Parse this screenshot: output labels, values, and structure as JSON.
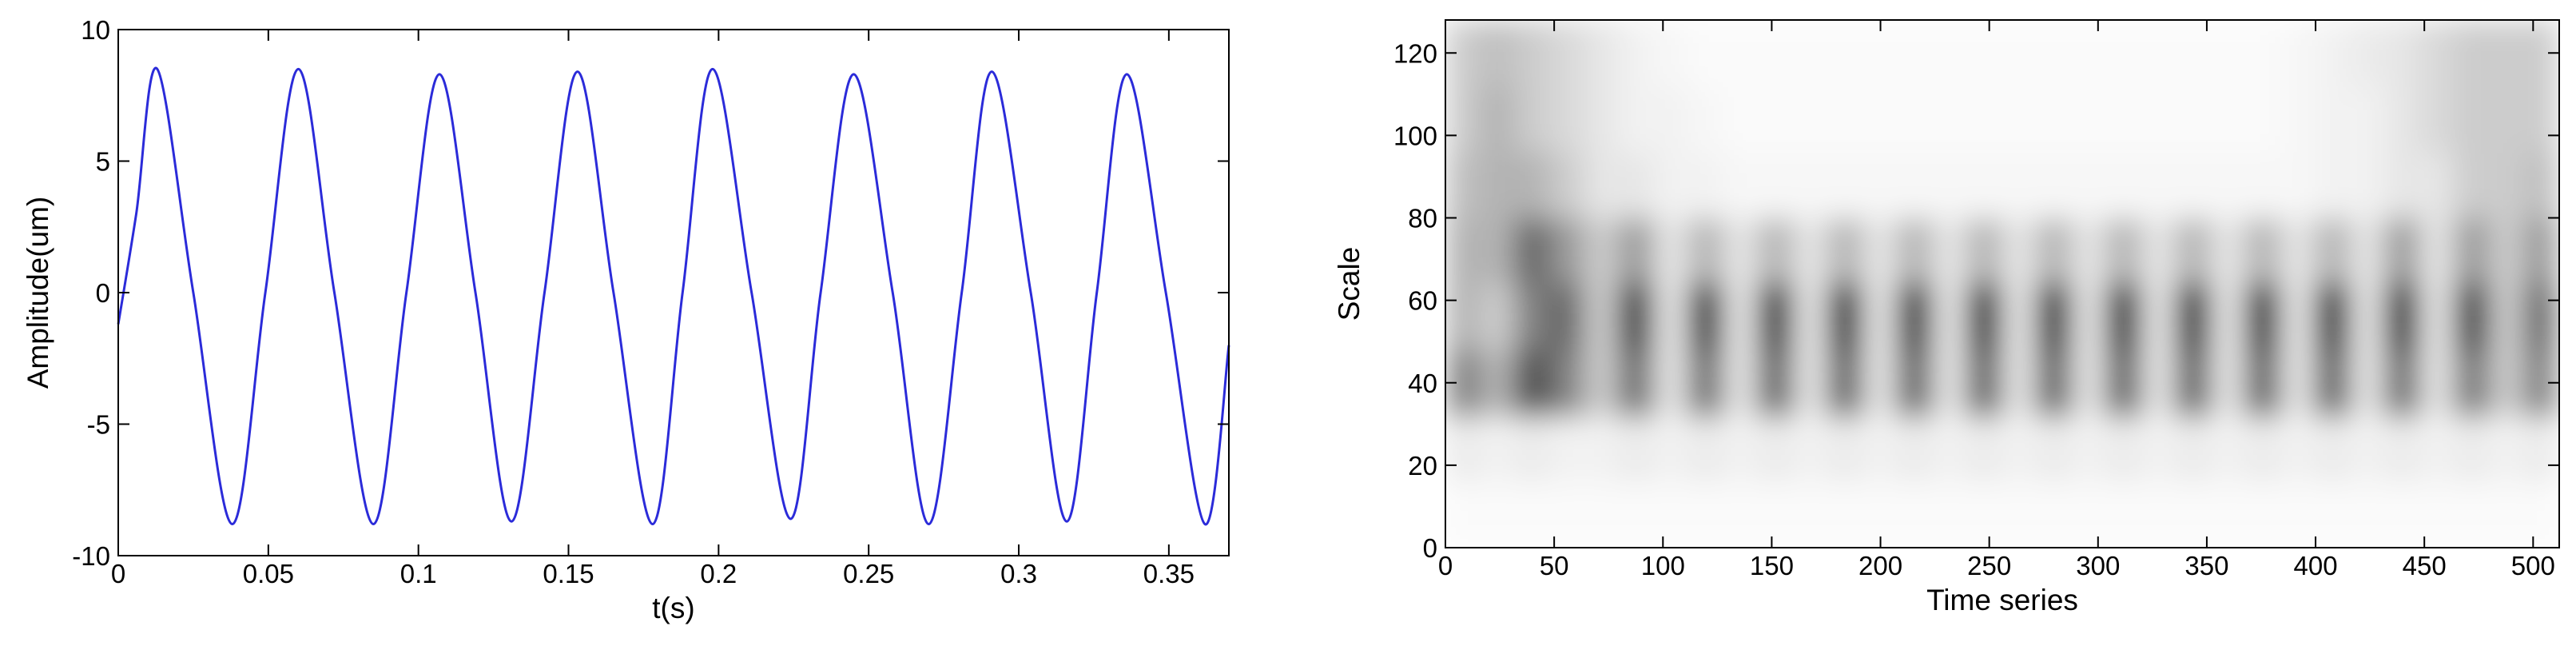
{
  "chart_data": [
    {
      "type": "line",
      "xlabel": "t(s)",
      "ylabel": "Amplitude(um)",
      "xlim": [
        0,
        0.37
      ],
      "ylim": [
        -10,
        10
      ],
      "xticks": [
        0,
        0.05,
        0.1,
        0.15,
        0.2,
        0.25,
        0.3,
        0.35
      ],
      "yticks": [
        -10,
        -5,
        0,
        5,
        10
      ],
      "series": [
        {
          "color": "#2b2bd9",
          "x": [
            0,
            0.006,
            0.013,
            0.025,
            0.038,
            0.049,
            0.06,
            0.072,
            0.085,
            0.096,
            0.107,
            0.119,
            0.131,
            0.142,
            0.153,
            0.165,
            0.178,
            0.188,
            0.198,
            0.211,
            0.224,
            0.234,
            0.245,
            0.258,
            0.27,
            0.281,
            0.291,
            0.304,
            0.316,
            0.326,
            0.336,
            0.349,
            0.362,
            0.37
          ],
          "values": [
            -1.2,
            3,
            8.5,
            0,
            -8.8,
            0,
            8.5,
            0,
            -8.8,
            0,
            8.3,
            0,
            -8.7,
            0,
            8.4,
            0,
            -8.8,
            0,
            8.5,
            0,
            -8.6,
            0,
            8.3,
            0,
            -8.8,
            0,
            8.4,
            0,
            -8.7,
            0,
            8.3,
            0,
            -8.8,
            -2
          ]
        }
      ]
    },
    {
      "type": "heatmap",
      "xlabel": "Time series",
      "ylabel": "Scale",
      "xlim": [
        0,
        512
      ],
      "ylim": [
        0,
        128
      ],
      "xticks": [
        0,
        50,
        100,
        150,
        200,
        250,
        300,
        350,
        400,
        450,
        500
      ],
      "yticks": [
        0,
        20,
        40,
        60,
        80,
        100,
        120
      ],
      "z": [
        [
          0.02,
          0.02,
          0.02,
          0.02,
          0.02,
          0.02,
          0.02,
          0.02,
          0.02,
          0.02,
          0.02,
          0.02,
          0.02,
          0.02,
          0.02,
          0.02,
          0.02,
          0.02,
          0.02,
          0.02,
          0.02,
          0.02,
          0.02,
          0.02,
          0.02,
          0.02,
          0.02,
          0.02,
          0.02,
          0.02,
          0.02,
          0.02
        ],
        [
          0.08,
          0.05,
          0.08,
          0.05,
          0.05,
          0.08,
          0.05,
          0.08,
          0.05,
          0.08,
          0.05,
          0.08,
          0.05,
          0.08,
          0.05,
          0.08,
          0.05,
          0.08,
          0.05,
          0.08,
          0.05,
          0.08,
          0.05,
          0.08,
          0.05,
          0.08,
          0.05,
          0.08,
          0.05,
          0.08,
          0.05,
          0.08
        ],
        [
          0.5,
          0.3,
          0.7,
          0.5,
          0.2,
          0.6,
          0.1,
          0.6,
          0.1,
          0.65,
          0.1,
          0.65,
          0.1,
          0.65,
          0.1,
          0.65,
          0.1,
          0.65,
          0.1,
          0.65,
          0.1,
          0.65,
          0.1,
          0.65,
          0.1,
          0.65,
          0.1,
          0.6,
          0.1,
          0.55,
          0.2,
          0.5
        ],
        [
          0.3,
          0.2,
          0.5,
          0.6,
          0.2,
          0.85,
          0.1,
          0.9,
          0.1,
          0.95,
          0.1,
          0.95,
          0.1,
          0.95,
          0.1,
          0.95,
          0.1,
          0.95,
          0.1,
          0.95,
          0.1,
          0.95,
          0.1,
          0.95,
          0.1,
          0.95,
          0.1,
          0.9,
          0.1,
          0.8,
          0.2,
          0.6
        ],
        [
          0.3,
          0.3,
          0.6,
          0.4,
          0.2,
          0.4,
          0.1,
          0.3,
          0.1,
          0.3,
          0.1,
          0.3,
          0.1,
          0.3,
          0.1,
          0.3,
          0.1,
          0.3,
          0.1,
          0.3,
          0.1,
          0.3,
          0.1,
          0.3,
          0.1,
          0.3,
          0.1,
          0.4,
          0.1,
          0.4,
          0.2,
          0.4
        ],
        [
          0.25,
          0.3,
          0.3,
          0.2,
          0.1,
          0.1,
          0.05,
          0.05,
          0.03,
          0.03,
          0.03,
          0.03,
          0.03,
          0.03,
          0.03,
          0.03,
          0.03,
          0.03,
          0.03,
          0.03,
          0.03,
          0.03,
          0.03,
          0.03,
          0.03,
          0.05,
          0.05,
          0.1,
          0.1,
          0.2,
          0.2,
          0.25
        ],
        [
          0.2,
          0.3,
          0.2,
          0.15,
          0.1,
          0.05,
          0.05,
          0.03,
          0.02,
          0.02,
          0.02,
          0.02,
          0.02,
          0.02,
          0.02,
          0.02,
          0.02,
          0.02,
          0.02,
          0.02,
          0.02,
          0.02,
          0.02,
          0.02,
          0.03,
          0.05,
          0.05,
          0.1,
          0.15,
          0.2,
          0.2,
          0.2
        ],
        [
          0.2,
          0.25,
          0.2,
          0.15,
          0.1,
          0.05,
          0.03,
          0.02,
          0.02,
          0.02,
          0.02,
          0.02,
          0.02,
          0.02,
          0.02,
          0.02,
          0.02,
          0.02,
          0.02,
          0.02,
          0.02,
          0.02,
          0.02,
          0.02,
          0.03,
          0.05,
          0.08,
          0.1,
          0.15,
          0.2,
          0.2,
          0.2
        ]
      ]
    }
  ]
}
